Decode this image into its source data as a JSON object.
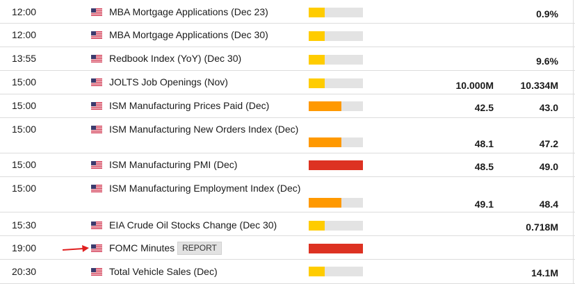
{
  "colors": {
    "low": "#ffcc00",
    "medium": "#ff9900",
    "high": "#dd3222",
    "bar_bg": "#e3e3e3",
    "pointer_arrow": "#e02020"
  },
  "icons": {
    "flag": "us-flag-icon",
    "arrow": "red-pointer-arrow-icon"
  },
  "events": [
    {
      "time": "12:00",
      "name": "MBA Mortgage Applications (Dec 23)",
      "impact": "low",
      "impact_fill": 0.3,
      "actual": "",
      "previous": "0.9%"
    },
    {
      "time": "12:00",
      "name": "MBA Mortgage Applications (Dec 30)",
      "impact": "low",
      "impact_fill": 0.3,
      "actual": "",
      "previous": ""
    },
    {
      "time": "13:55",
      "name": "Redbook Index (YoY) (Dec 30)",
      "impact": "low",
      "impact_fill": 0.3,
      "actual": "",
      "previous": "9.6%"
    },
    {
      "time": "15:00",
      "name": "JOLTS Job Openings (Nov)",
      "impact": "low",
      "impact_fill": 0.3,
      "actual": "10.000M",
      "previous": "10.334M"
    },
    {
      "time": "15:00",
      "name": "ISM Manufacturing Prices Paid (Dec)",
      "impact": "medium",
      "impact_fill": 0.6,
      "actual": "42.5",
      "previous": "43.0"
    },
    {
      "time": "15:00",
      "name": "ISM Manufacturing New Orders Index (Dec)",
      "impact": "medium",
      "impact_fill": 0.6,
      "actual": "48.1",
      "previous": "47.2"
    },
    {
      "time": "15:00",
      "name": "ISM Manufacturing PMI (Dec)",
      "impact": "high",
      "impact_fill": 1.0,
      "actual": "48.5",
      "previous": "49.0"
    },
    {
      "time": "15:00",
      "name": "ISM Manufacturing Employment Index (Dec)",
      "impact": "medium",
      "impact_fill": 0.6,
      "actual": "49.1",
      "previous": "48.4"
    },
    {
      "time": "15:30",
      "name": "EIA Crude Oil Stocks Change (Dec 30)",
      "impact": "low",
      "impact_fill": 0.3,
      "actual": "",
      "previous": "0.718M"
    },
    {
      "time": "19:00",
      "name": "FOMC Minutes",
      "impact": "high",
      "impact_fill": 1.0,
      "actual": "",
      "previous": "",
      "button": "REPORT",
      "highlighted": true
    },
    {
      "time": "20:30",
      "name": "Total Vehicle Sales (Dec)",
      "impact": "low",
      "impact_fill": 0.3,
      "actual": "",
      "previous": "14.1M"
    }
  ]
}
